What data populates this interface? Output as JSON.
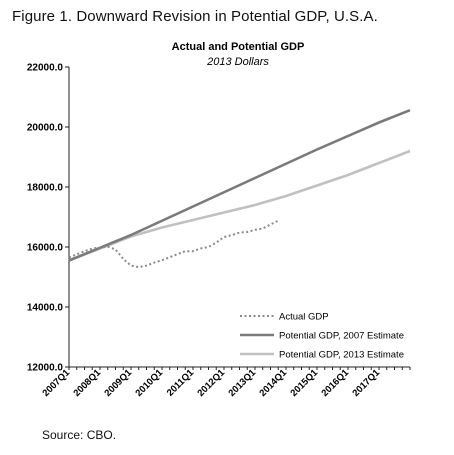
{
  "figure_title": "Figure 1.  Downward Revision in Potential GDP, U.S.A.",
  "source": "Source: CBO.",
  "colors": {
    "actual": "#8a8a8a",
    "potential_2007": "#7a7a7a",
    "potential_2013": "#c0c0c0",
    "axis": "#222222"
  },
  "chart_data": {
    "type": "line",
    "title": "Actual and Potential GDP",
    "subtitle": "2013 Dollars",
    "xlabel": "",
    "ylabel": "",
    "x_tick_labels": [
      "2007Q1",
      "2008Q1",
      "2009Q1",
      "2010Q1",
      "2011Q1",
      "2012Q1",
      "2013Q1",
      "2014Q1",
      "2015Q1",
      "2016Q1",
      "2017Q1"
    ],
    "y_tick_labels": [
      "22000.0",
      "20000.0",
      "18000.0",
      "16000.0",
      "14000.0",
      "12000.0"
    ],
    "ylim": [
      12000,
      22000
    ],
    "xlim": [
      "2007Q1",
      "2018Q1"
    ],
    "grid": false,
    "legend_position": "bottom-right",
    "series": [
      {
        "name": "Actual GDP",
        "style": "dotted",
        "points": [
          [
            "2007Q1",
            15650
          ],
          [
            "2007Q2",
            15760
          ],
          [
            "2007Q3",
            15860
          ],
          [
            "2007Q4",
            15950
          ],
          [
            "2008Q1",
            15980
          ],
          [
            "2008Q2",
            16010
          ],
          [
            "2008Q3",
            15920
          ],
          [
            "2008Q4",
            15600
          ],
          [
            "2009Q1",
            15380
          ],
          [
            "2009Q2",
            15330
          ],
          [
            "2009Q3",
            15380
          ],
          [
            "2009Q4",
            15480
          ],
          [
            "2010Q1",
            15560
          ],
          [
            "2010Q2",
            15660
          ],
          [
            "2010Q3",
            15760
          ],
          [
            "2010Q4",
            15860
          ],
          [
            "2011Q1",
            15860
          ],
          [
            "2011Q2",
            15950
          ],
          [
            "2011Q3",
            16000
          ],
          [
            "2011Q4",
            16150
          ],
          [
            "2012Q1",
            16330
          ],
          [
            "2012Q2",
            16400
          ],
          [
            "2012Q3",
            16480
          ],
          [
            "2012Q4",
            16500
          ],
          [
            "2013Q1",
            16570
          ],
          [
            "2013Q2",
            16620
          ],
          [
            "2013Q3",
            16750
          ],
          [
            "2013Q4",
            16880
          ]
        ]
      },
      {
        "name": "Potential GDP, 2007 Estimate",
        "style": "solid",
        "points": [
          [
            "2007Q1",
            15550
          ],
          [
            "2009Q1",
            16400
          ],
          [
            "2011Q1",
            17350
          ],
          [
            "2013Q1",
            18300
          ],
          [
            "2015Q1",
            19250
          ],
          [
            "2017Q1",
            20150
          ],
          [
            "2018Q1",
            20560
          ]
        ]
      },
      {
        "name": "Potential GDP, 2013 Estimate",
        "style": "solid",
        "points": [
          [
            "2007Q1",
            15550
          ],
          [
            "2008Q1",
            15950
          ],
          [
            "2009Q1",
            16350
          ],
          [
            "2010Q1",
            16650
          ],
          [
            "2011Q1",
            16900
          ],
          [
            "2012Q1",
            17150
          ],
          [
            "2013Q1",
            17400
          ],
          [
            "2014Q1",
            17700
          ],
          [
            "2015Q1",
            18050
          ],
          [
            "2016Q1",
            18400
          ],
          [
            "2017Q1",
            18800
          ],
          [
            "2018Q1",
            19200
          ]
        ]
      }
    ]
  }
}
